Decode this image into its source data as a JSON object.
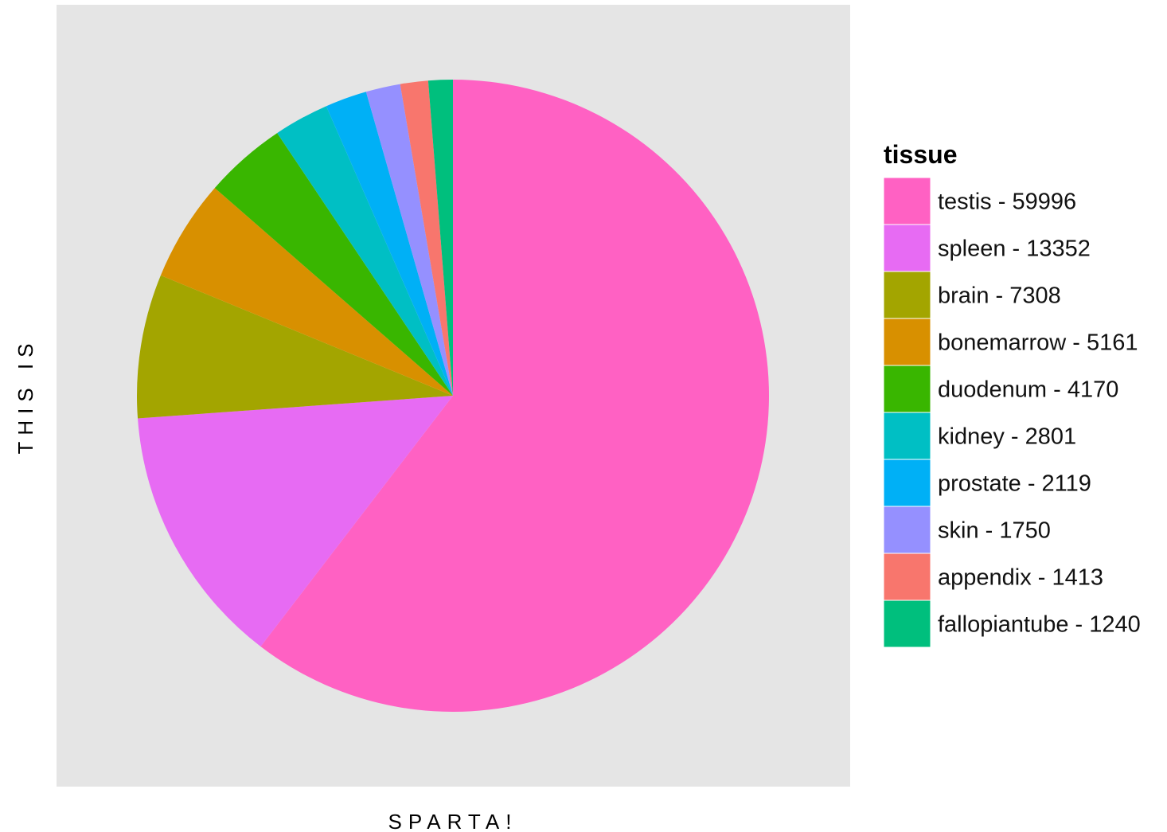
{
  "chart_data": {
    "type": "pie",
    "xlabel": "SPARTA!",
    "ylabel": "THIS IS",
    "legend_title": "tissue",
    "legend_position": "right",
    "grid": false,
    "panel_background": "#e5e5e5",
    "slices": [
      {
        "label": "testis - 59996",
        "value": 59996,
        "color": "#ff61c3"
      },
      {
        "label": "spleen - 13352",
        "value": 13352,
        "color": "#e76bf3"
      },
      {
        "label": "brain - 7308",
        "value": 7308,
        "color": "#a3a500"
      },
      {
        "label": "bonemarrow - 5161",
        "value": 5161,
        "color": "#d89000"
      },
      {
        "label": "duodenum - 4170",
        "value": 4170,
        "color": "#39b600"
      },
      {
        "label": "kidney - 2801",
        "value": 2801,
        "color": "#00bfc4"
      },
      {
        "label": "prostate - 2119",
        "value": 2119,
        "color": "#00b0f6"
      },
      {
        "label": "skin - 1750",
        "value": 1750,
        "color": "#9590ff"
      },
      {
        "label": "appendix - 1413",
        "value": 1413,
        "color": "#f8766d"
      },
      {
        "label": "fallopiantube - 1240",
        "value": 1240,
        "color": "#00bf7d"
      }
    ]
  }
}
